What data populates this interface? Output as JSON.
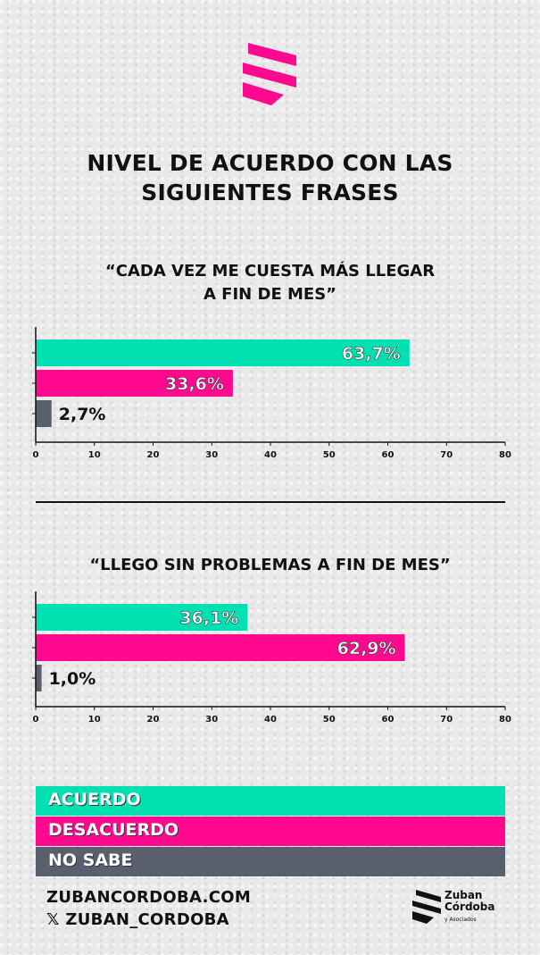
{
  "colors": {
    "acuerdo": "#00e0b0",
    "desacuerdo": "#ff0a8f",
    "nosabe": "#5a5f6e",
    "axis": "#111111"
  },
  "title": {
    "line1": "NIVEL DE ACUERDO CON LAS",
    "line2": "SIGUIENTES FRASES"
  },
  "chart_data": [
    {
      "type": "bar",
      "orientation": "horizontal",
      "title": "“CADA VEZ ME CUESTA MÁS LLEGAR A FIN DE MES”",
      "title_line1": "“CADA VEZ ME CUESTA MÁS LLEGAR",
      "title_line2": "A FIN DE MES”",
      "categories": [
        "ACUERDO",
        "DESACUERDO",
        "NO SABE"
      ],
      "values": [
        63.7,
        33.6,
        2.7
      ],
      "labels": [
        "63,7%",
        "33,6%",
        "2,7%"
      ],
      "xlim": [
        0,
        80
      ],
      "xticks": [
        "0",
        "10",
        "20",
        "30",
        "40",
        "50",
        "60",
        "70",
        "80"
      ]
    },
    {
      "type": "bar",
      "orientation": "horizontal",
      "title": "“LLEGO SIN PROBLEMAS A FIN DE MES”",
      "categories": [
        "ACUERDO",
        "DESACUERDO",
        "NO SABE"
      ],
      "values": [
        36.1,
        62.9,
        1.0
      ],
      "labels": [
        "36,1%",
        "62,9%",
        "1,0%"
      ],
      "xlim": [
        0,
        80
      ],
      "xticks": [
        "0",
        "10",
        "20",
        "30",
        "40",
        "50",
        "60",
        "70",
        "80"
      ]
    }
  ],
  "legend": {
    "acuerdo": "ACUERDO",
    "desacuerdo": "DESACUERDO",
    "nosabe": "NO SABE"
  },
  "footer": {
    "website": "ZUBANCORDOBA.COM",
    "social": "𝕏 ZUBAN_CORDOBA"
  },
  "brand": {
    "line1": "Zuban",
    "line2": "Córdoba",
    "small": "y Asociados"
  }
}
